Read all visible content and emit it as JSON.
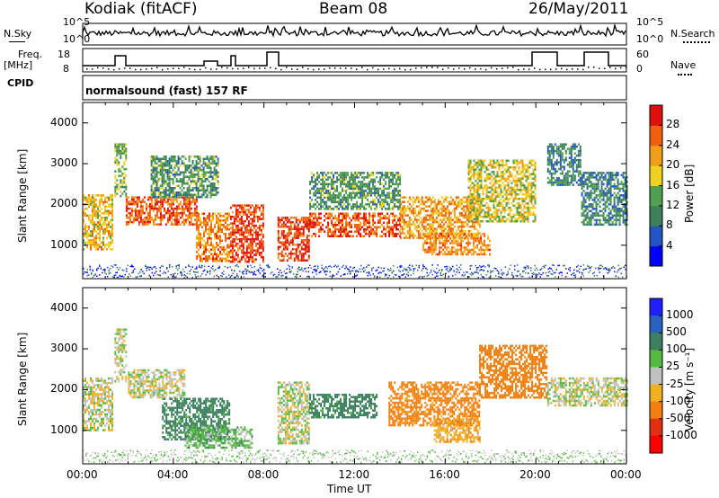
{
  "header": {
    "station": "Kodiak (fitACF)",
    "beam": "Beam 08",
    "date": "26/May/2011"
  },
  "strip": {
    "nsky_label": "N.Sky",
    "nsky_ticks": [
      "10^5",
      "10^0"
    ],
    "nsearch_label": "N.Search",
    "nsearch_ticks": [
      "10^5",
      "10^0"
    ],
    "freq_label": "Freq.",
    "freq_unit": "[MHz]",
    "freq_ticks": [
      "18",
      "8"
    ],
    "nave_label": "Nave",
    "nave_ticks": [
      "60",
      "0"
    ],
    "cpid_label": "CPID",
    "cpid_text": "normalsound (fast) 157 RF"
  },
  "colors": {
    "power": [
      "#0000ff",
      "#2255c0",
      "#3c7f5a",
      "#50a050",
      "#f0d020",
      "#f0a018",
      "#f06010",
      "#e01010"
    ],
    "velocity": [
      "#2020ff",
      "#2a60c0",
      "#3d7f60",
      "#55bb40",
      "#c0c0c0",
      "#f0b020",
      "#f08010",
      "#e03010",
      "#ff0000"
    ]
  },
  "chart_data": [
    {
      "type": "heatmap",
      "name": "power",
      "ylabel": "Slant Range [km]",
      "xlabel": "",
      "xlim": [
        0,
        24
      ],
      "ylim": [
        180,
        4500
      ],
      "yticks": [
        "4000",
        "3000",
        "2000",
        "1000"
      ],
      "xticks": [
        "00:00",
        "04:00",
        "08:00",
        "12:00",
        "16:00",
        "20:00",
        "00:00"
      ],
      "colorbar": {
        "label": "Power [dB]",
        "ticks": [
          "28",
          "24",
          "20",
          "16",
          "12",
          "8",
          "4"
        ],
        "range": [
          0,
          32
        ]
      },
      "regions": [
        {
          "t0": 0.0,
          "t1": 1.3,
          "r0": 900,
          "r1": 2250,
          "v": 20
        },
        {
          "t0": 1.4,
          "t1": 1.9,
          "r0": 2200,
          "r1": 3500,
          "v": 14
        },
        {
          "t0": 1.9,
          "t1": 5.0,
          "r0": 1500,
          "r1": 2200,
          "v": 26
        },
        {
          "t0": 3.0,
          "t1": 6.0,
          "r0": 2200,
          "r1": 3200,
          "v": 12
        },
        {
          "t0": 5.0,
          "t1": 6.5,
          "r0": 600,
          "r1": 1800,
          "v": 24
        },
        {
          "t0": 6.5,
          "t1": 8.0,
          "r0": 600,
          "r1": 2000,
          "v": 28
        },
        {
          "t0": 8.6,
          "t1": 10.0,
          "r0": 600,
          "r1": 1700,
          "v": 28
        },
        {
          "t0": 10.0,
          "t1": 14.0,
          "r0": 1200,
          "r1": 1800,
          "v": 27
        },
        {
          "t0": 10.0,
          "t1": 14.0,
          "r0": 1900,
          "r1": 2800,
          "v": 12
        },
        {
          "t0": 14.0,
          "t1": 17.5,
          "r0": 1200,
          "r1": 2200,
          "v": 22
        },
        {
          "t0": 15.0,
          "t1": 18.0,
          "r0": 800,
          "r1": 1300,
          "v": 24
        },
        {
          "t0": 17.0,
          "t1": 20.0,
          "r0": 1600,
          "r1": 3100,
          "v": 18
        },
        {
          "t0": 20.5,
          "t1": 22.0,
          "r0": 2500,
          "r1": 3500,
          "v": 10
        },
        {
          "t0": 22.0,
          "t1": 24.0,
          "r0": 1500,
          "r1": 2800,
          "v": 10
        }
      ]
    },
    {
      "type": "heatmap",
      "name": "velocity",
      "ylabel": "Slant Range [km]",
      "xlabel": "Time UT",
      "xlim": [
        0,
        24
      ],
      "ylim": [
        180,
        4500
      ],
      "yticks": [
        "4000",
        "3000",
        "2000",
        "1000"
      ],
      "xticks": [
        "00:00",
        "04:00",
        "08:00",
        "12:00",
        "16:00",
        "20:00",
        "00:00"
      ],
      "colorbar": {
        "label": "Velocity [m s⁻¹]",
        "ticks": [
          "1000",
          "500",
          "100",
          "25",
          "-25",
          "-100",
          "-500",
          "-1000"
        ]
      },
      "regions": [
        {
          "t0": 0.0,
          "t1": 1.3,
          "r0": 1000,
          "r1": 2300,
          "v": 0
        },
        {
          "t0": 1.4,
          "t1": 1.9,
          "r0": 2200,
          "r1": 3500,
          "v": 0
        },
        {
          "t0": 2.0,
          "t1": 4.5,
          "r0": 1800,
          "r1": 2500,
          "v": 0
        },
        {
          "t0": 3.5,
          "t1": 6.5,
          "r0": 800,
          "r1": 1800,
          "v": 150
        },
        {
          "t0": 4.5,
          "t1": 7.5,
          "r0": 600,
          "r1": 1100,
          "v": 60
        },
        {
          "t0": 8.6,
          "t1": 10.0,
          "r0": 700,
          "r1": 2200,
          "v": 0
        },
        {
          "t0": 10.0,
          "t1": 13.0,
          "r0": 1300,
          "r1": 1900,
          "v": 150
        },
        {
          "t0": 13.5,
          "t1": 17.5,
          "r0": 1100,
          "r1": 2200,
          "v": -150
        },
        {
          "t0": 15.5,
          "t1": 17.5,
          "r0": 700,
          "r1": 1300,
          "v": -80
        },
        {
          "t0": 17.5,
          "t1": 20.5,
          "r0": 1800,
          "r1": 3100,
          "v": -400
        },
        {
          "t0": 20.5,
          "t1": 24.0,
          "r0": 1600,
          "r1": 2300,
          "v": 0
        }
      ]
    }
  ]
}
